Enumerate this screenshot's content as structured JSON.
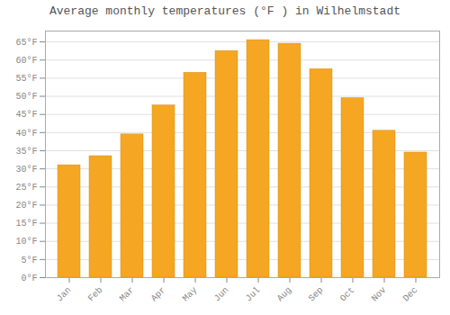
{
  "chart_data": {
    "type": "bar",
    "title": "Average monthly temperatures (°F ) in Wilhelmstadt",
    "categories": [
      "Jan",
      "Feb",
      "Mar",
      "Apr",
      "May",
      "Jun",
      "Jul",
      "Aug",
      "Sep",
      "Oct",
      "Nov",
      "Dec"
    ],
    "values": [
      31.0,
      33.5,
      39.5,
      47.5,
      56.5,
      62.5,
      65.5,
      64.5,
      57.5,
      49.5,
      40.5,
      34.5
    ],
    "color": "#F5A623",
    "ylim": [
      0,
      68
    ],
    "yticks": [
      {
        "value": 0,
        "label": "0°F"
      },
      {
        "value": 5,
        "label": "5°F"
      },
      {
        "value": 10,
        "label": "10°F"
      },
      {
        "value": 15,
        "label": "15°F"
      },
      {
        "value": 20,
        "label": "20°F"
      },
      {
        "value": 25,
        "label": "25°F"
      },
      {
        "value": 30,
        "label": "30°F"
      },
      {
        "value": 35,
        "label": "35°F"
      },
      {
        "value": 40,
        "label": "40°F"
      },
      {
        "value": 45,
        "label": "45°F"
      },
      {
        "value": 50,
        "label": "50°F"
      },
      {
        "value": 55,
        "label": "55°F"
      },
      {
        "value": 60,
        "label": "60°F"
      },
      {
        "value": 65,
        "label": "65°F"
      }
    ],
    "grid": true
  }
}
